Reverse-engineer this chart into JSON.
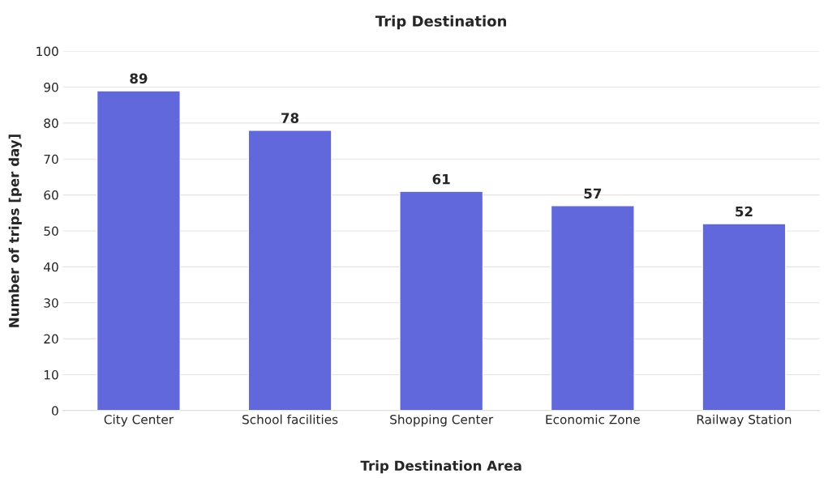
{
  "chart_data": {
    "type": "bar",
    "title": "Trip Destination",
    "xlabel": "Trip Destination Area",
    "ylabel": "Number of trips [per day]",
    "categories": [
      "City Center",
      "School facilities",
      "Shopping Center",
      "Economic Zone",
      "Railway Station"
    ],
    "values": [
      89,
      78,
      61,
      57,
      52
    ],
    "color": "#6068dc",
    "data_labels": true,
    "ylim": [
      0,
      100
    ],
    "yticks": [
      0,
      10,
      20,
      30,
      40,
      50,
      60,
      70,
      80,
      90,
      100
    ],
    "grid": "y"
  }
}
